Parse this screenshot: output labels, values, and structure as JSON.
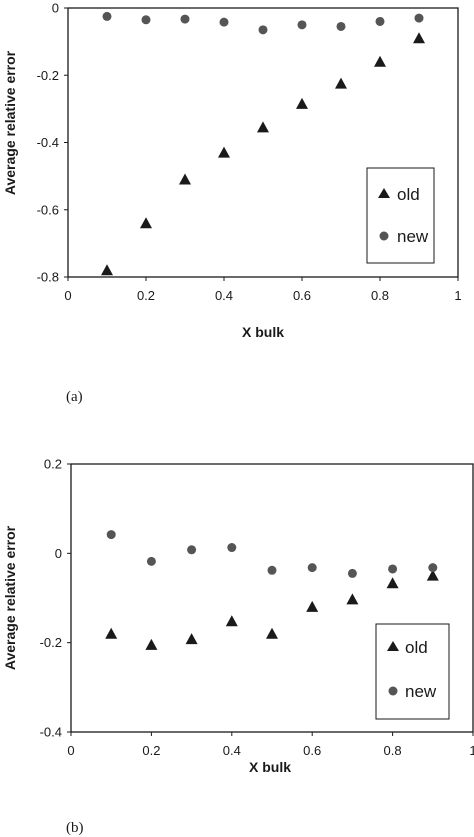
{
  "chart_data": [
    {
      "type": "scatter",
      "caption": "(a)",
      "xlabel": "X bulk",
      "ylabel": "Average relative error",
      "xlim": [
        0,
        1
      ],
      "ylim": [
        -0.8,
        0
      ],
      "xticks": [
        "0",
        "0.2",
        "0.4",
        "0.6",
        "0.8",
        "1"
      ],
      "yticks": [
        "0",
        "-0.2",
        "-0.4",
        "-0.6",
        "-0.8"
      ],
      "legend_position": "lower-right",
      "series": [
        {
          "name": "old",
          "marker": "triangle",
          "x": [
            0.1,
            0.2,
            0.3,
            0.4,
            0.5,
            0.6,
            0.7,
            0.8,
            0.9
          ],
          "y": [
            -0.78,
            -0.64,
            -0.51,
            -0.43,
            -0.355,
            -0.285,
            -0.225,
            -0.16,
            -0.09
          ]
        },
        {
          "name": "new",
          "marker": "circle",
          "x": [
            0.1,
            0.2,
            0.3,
            0.4,
            0.5,
            0.6,
            0.7,
            0.8,
            0.9
          ],
          "y": [
            -0.025,
            -0.035,
            -0.033,
            -0.042,
            -0.065,
            -0.05,
            -0.055,
            -0.04,
            -0.03
          ]
        }
      ]
    },
    {
      "type": "scatter",
      "caption": "(b)",
      "xlabel": "X bulk",
      "ylabel": "Average relative error",
      "xlim": [
        0,
        1
      ],
      "ylim": [
        -0.4,
        0.2
      ],
      "xticks": [
        "0",
        "0.2",
        "0.4",
        "0.6",
        "0.8",
        "1"
      ],
      "yticks": [
        "0.2",
        "0",
        "-0.2",
        "-0.4"
      ],
      "legend_position": "lower-right",
      "series": [
        {
          "name": "old",
          "marker": "triangle",
          "x": [
            0.1,
            0.2,
            0.3,
            0.4,
            0.5,
            0.6,
            0.7,
            0.8,
            0.9
          ],
          "y": [
            -0.18,
            -0.205,
            -0.192,
            -0.152,
            -0.18,
            -0.12,
            -0.103,
            -0.067,
            -0.05
          ]
        },
        {
          "name": "new",
          "marker": "circle",
          "x": [
            0.1,
            0.2,
            0.3,
            0.4,
            0.5,
            0.6,
            0.7,
            0.8,
            0.9
          ],
          "y": [
            0.042,
            -0.018,
            0.008,
            0.013,
            -0.038,
            -0.032,
            -0.045,
            -0.035,
            -0.032
          ]
        }
      ]
    }
  ]
}
